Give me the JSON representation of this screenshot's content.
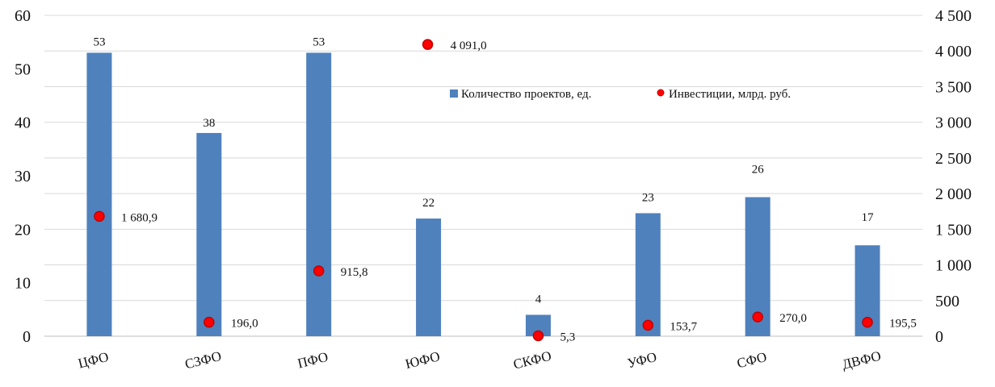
{
  "chart_data": {
    "type": "bar",
    "title": "",
    "categories": [
      "ЦФО",
      "СЗФО",
      "ПФО",
      "ЮФО",
      "СКФО",
      "УФО",
      "СФО",
      "ДВФО"
    ],
    "series": [
      {
        "name": "Количество проектов, ед.",
        "type": "bar",
        "axis": "left",
        "color": "#4f81bd",
        "values": [
          53,
          38,
          53,
          22,
          4,
          23,
          26,
          17
        ],
        "labels": [
          "53",
          "38",
          "53",
          "22",
          "4",
          "23",
          "26",
          "17"
        ]
      },
      {
        "name": "Инвестиции,  млрд. руб.",
        "type": "scatter",
        "axis": "right",
        "color": "#ff0000",
        "values": [
          1680.9,
          196.0,
          915.8,
          4091.0,
          5.3,
          153.7,
          270.0,
          195.5
        ],
        "labels": [
          "1 680,9",
          "196,0",
          "915,8",
          "4 091,0",
          "5,3",
          "153,7",
          "270,0",
          "195,5"
        ]
      }
    ],
    "y_left": {
      "ylim": [
        0,
        60
      ],
      "ticks": [
        0,
        10,
        20,
        30,
        40,
        50,
        60
      ],
      "tick_labels": [
        "0",
        "10",
        "20",
        "30",
        "40",
        "50",
        "60"
      ]
    },
    "y_right": {
      "ylim": [
        0,
        4500
      ],
      "ticks": [
        0,
        500,
        1000,
        1500,
        2000,
        2500,
        3000,
        3500,
        4000,
        4500
      ],
      "tick_labels": [
        "0",
        "500",
        "1 000",
        "1 500",
        "2 000",
        "2 500",
        "3 000",
        "3 500",
        "4 000",
        "4 500"
      ]
    },
    "grid": true,
    "legend_position": "top-right"
  }
}
